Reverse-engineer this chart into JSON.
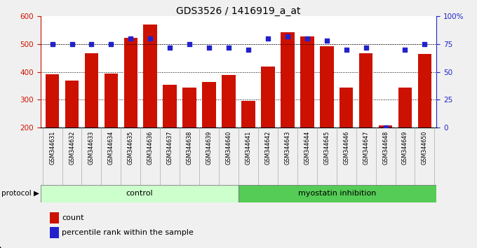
{
  "title": "GDS3526 / 1416919_a_at",
  "samples": [
    "GSM344631",
    "GSM344632",
    "GSM344633",
    "GSM344634",
    "GSM344635",
    "GSM344636",
    "GSM344637",
    "GSM344638",
    "GSM344639",
    "GSM344640",
    "GSM344641",
    "GSM344642",
    "GSM344643",
    "GSM344644",
    "GSM344645",
    "GSM344646",
    "GSM344647",
    "GSM344648",
    "GSM344649",
    "GSM344650"
  ],
  "counts": [
    392,
    368,
    468,
    393,
    521,
    570,
    355,
    343,
    365,
    388,
    295,
    418,
    543,
    527,
    492,
    345,
    468,
    208,
    345,
    465
  ],
  "percentiles": [
    75,
    75,
    75,
    75,
    80,
    80,
    72,
    75,
    72,
    72,
    70,
    80,
    82,
    80,
    78,
    70,
    72,
    0,
    70,
    75
  ],
  "control_count": 10,
  "bar_color": "#cc1100",
  "dot_color": "#2222cc",
  "control_label": "control",
  "treatment_label": "myostatin inhibition",
  "protocol_label": "protocol",
  "legend_count": "count",
  "legend_percentile": "percentile rank within the sample",
  "ylim_left": [
    200,
    600
  ],
  "ylim_right": [
    0,
    100
  ],
  "yticks_left": [
    200,
    300,
    400,
    500,
    600
  ],
  "yticks_right": [
    0,
    25,
    50,
    75,
    100
  ],
  "grid_values": [
    300,
    400,
    500
  ],
  "background_color": "#f0f0f0",
  "plot_bg": "#ffffff",
  "xtick_bg": "#cccccc",
  "control_bg": "#ccffcc",
  "treatment_bg": "#55cc55",
  "tick_label_color_left": "#cc1100",
  "tick_label_color_right": "#2222cc"
}
